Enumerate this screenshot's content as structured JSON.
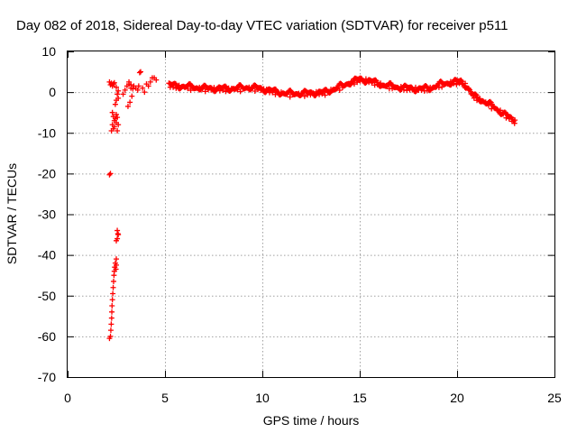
{
  "chart_data": {
    "type": "scatter",
    "title": "Day 082 of 2018, Sidereal Day-to-day VTEC variation (SDTVAR) for receiver p511",
    "xlabel": "GPS time / hours",
    "ylabel": "SDTVAR / TECUs",
    "xlim": [
      0,
      25
    ],
    "ylim": [
      -70,
      10
    ],
    "xticks": [
      0,
      5,
      10,
      15,
      20,
      25
    ],
    "yticks": [
      10,
      0,
      -10,
      -20,
      -30,
      -40,
      -50,
      -60,
      -70
    ],
    "xtick_labels": [
      "0",
      "5",
      "10",
      "15",
      "20",
      "25"
    ],
    "ytick_labels": [
      "10",
      "0",
      "-10",
      "-20",
      "-30",
      "-40",
      "-50",
      "-60",
      "-70"
    ],
    "grid": true,
    "legend": "none",
    "marker": "+",
    "series": [
      {
        "name": "SDTVAR",
        "color": "#ff0000",
        "points": [
          [
            2.15,
            2.5
          ],
          [
            2.2,
            1.8
          ],
          [
            2.25,
            2.2
          ],
          [
            2.3,
            1.5
          ],
          [
            2.35,
            2.0
          ],
          [
            2.4,
            2.3
          ],
          [
            2.5,
            1.2
          ],
          [
            2.55,
            -0.5
          ],
          [
            2.6,
            -1.5
          ],
          [
            2.45,
            -3.0
          ],
          [
            2.5,
            -2.0
          ],
          [
            2.6,
            0.3
          ],
          [
            2.3,
            -5.0
          ],
          [
            2.35,
            -6.0
          ],
          [
            2.4,
            -7.0
          ],
          [
            2.45,
            -6.5
          ],
          [
            2.5,
            -5.5
          ],
          [
            2.55,
            -6.2
          ],
          [
            2.3,
            -8.0
          ],
          [
            2.35,
            -9.0
          ],
          [
            2.4,
            -8.5
          ],
          [
            2.5,
            -7.5
          ],
          [
            2.55,
            -9.5
          ],
          [
            2.6,
            -8.0
          ],
          [
            2.25,
            -9.5
          ],
          [
            2.15,
            -20.3
          ],
          [
            2.2,
            -20.0
          ],
          [
            2.55,
            -34.0
          ],
          [
            2.6,
            -35.0
          ],
          [
            2.55,
            -36.0
          ],
          [
            2.5,
            -36.5
          ],
          [
            2.58,
            -34.8
          ],
          [
            2.5,
            -41.0
          ],
          [
            2.45,
            -42.0
          ],
          [
            2.42,
            -43.0
          ],
          [
            2.4,
            -44.0
          ],
          [
            2.5,
            -42.5
          ],
          [
            2.48,
            -43.5
          ],
          [
            2.38,
            -45.0
          ],
          [
            2.36,
            -46.5
          ],
          [
            2.34,
            -48.0
          ],
          [
            2.32,
            -49.5
          ],
          [
            2.3,
            -51.0
          ],
          [
            2.28,
            -52.5
          ],
          [
            2.27,
            -54.0
          ],
          [
            2.26,
            -55.5
          ],
          [
            2.24,
            -57.0
          ],
          [
            2.22,
            -58.5
          ],
          [
            2.2,
            -60.0
          ],
          [
            2.15,
            -60.5
          ],
          [
            2.85,
            -0.5
          ],
          [
            2.95,
            0.5
          ],
          [
            3.05,
            1.5
          ],
          [
            3.15,
            2.0
          ],
          [
            3.25,
            1.0
          ],
          [
            3.3,
            -1.0
          ],
          [
            3.2,
            -2.5
          ],
          [
            3.1,
            -3.5
          ],
          [
            3.15,
            2.5
          ],
          [
            3.25,
            1.8
          ],
          [
            3.35,
            0.8
          ],
          [
            3.4,
            1.5
          ],
          [
            3.5,
            1.0
          ],
          [
            3.6,
            0.5
          ],
          [
            3.65,
            1.5
          ],
          [
            3.7,
            4.8
          ],
          [
            3.75,
            5.0
          ],
          [
            3.85,
            1.0
          ],
          [
            3.95,
            0.0
          ],
          [
            4.05,
            2.0
          ],
          [
            4.15,
            1.5
          ],
          [
            4.25,
            2.5
          ],
          [
            4.35,
            3.5
          ],
          [
            4.45,
            3.5
          ],
          [
            4.55,
            3.0
          ]
        ],
        "curve": [
          [
            5.2,
            1.8
          ],
          [
            5.7,
            1.5
          ],
          [
            6.3,
            1.3
          ],
          [
            7.0,
            1.0
          ],
          [
            7.7,
            0.9
          ],
          [
            8.5,
            0.9
          ],
          [
            9.2,
            1.2
          ],
          [
            9.8,
            1.0
          ],
          [
            10.5,
            0.3
          ],
          [
            11.2,
            -0.3
          ],
          [
            11.8,
            -0.3
          ],
          [
            12.5,
            -0.2
          ],
          [
            13.2,
            0.0
          ],
          [
            13.8,
            1.0
          ],
          [
            14.4,
            2.2
          ],
          [
            15.0,
            3.2
          ],
          [
            15.5,
            2.8
          ],
          [
            16.2,
            1.8
          ],
          [
            17.0,
            1.2
          ],
          [
            18.0,
            0.8
          ],
          [
            18.6,
            1.0
          ],
          [
            19.2,
            2.0
          ],
          [
            19.8,
            2.5
          ],
          [
            20.2,
            2.6
          ],
          [
            20.5,
            1.5
          ],
          [
            20.8,
            -0.8
          ],
          [
            21.2,
            -1.8
          ],
          [
            21.6,
            -2.8
          ],
          [
            22.0,
            -4.0
          ],
          [
            22.4,
            -5.3
          ],
          [
            22.8,
            -6.6
          ],
          [
            23.0,
            -7.2
          ]
        ]
      }
    ]
  }
}
